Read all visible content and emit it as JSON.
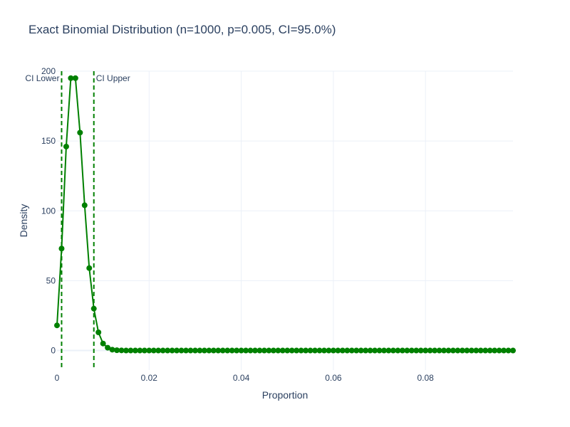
{
  "chart_data": {
    "type": "line",
    "title": "Exact Binomial Distribution (n=1000, p=0.005, CI=95.0%)",
    "xlabel": "Proportion",
    "ylabel": "Density",
    "xlim": [
      0,
      0.099
    ],
    "ylim": [
      -14,
      200
    ],
    "x_ticks": [
      0,
      0.02,
      0.04,
      0.06,
      0.08
    ],
    "x_tick_labels": [
      "0",
      "0.02",
      "0.04",
      "0.06",
      "0.08"
    ],
    "y_ticks": [
      0,
      50,
      100,
      150,
      200
    ],
    "y_tick_labels": [
      "0",
      "50",
      "100",
      "150",
      "200"
    ],
    "grid": true,
    "color": "#008000",
    "series": [
      {
        "x": [
          0,
          0.001,
          0.002,
          0.003,
          0.004,
          0.005,
          0.006,
          0.007,
          0.008,
          0.009,
          0.01,
          0.011,
          0.012,
          0.013,
          0.014,
          0.015,
          0.016,
          0.017,
          0.018,
          0.019,
          0.02,
          0.021,
          0.022,
          0.023,
          0.024,
          0.025,
          0.026,
          0.027,
          0.028,
          0.029,
          0.03,
          0.031,
          0.032,
          0.033,
          0.034,
          0.035,
          0.036,
          0.037,
          0.038,
          0.039,
          0.04,
          0.041,
          0.042,
          0.043,
          0.044,
          0.045,
          0.046,
          0.047,
          0.048,
          0.049,
          0.05,
          0.051,
          0.052,
          0.053,
          0.054,
          0.055,
          0.056,
          0.057,
          0.058,
          0.059,
          0.06,
          0.061,
          0.062,
          0.063,
          0.064,
          0.065,
          0.066,
          0.067,
          0.068,
          0.069,
          0.07,
          0.071,
          0.072,
          0.073,
          0.074,
          0.075,
          0.076,
          0.077,
          0.078,
          0.079,
          0.08,
          0.081,
          0.082,
          0.083,
          0.084,
          0.085,
          0.086,
          0.087,
          0.088,
          0.089,
          0.09,
          0.091,
          0.092,
          0.093,
          0.094,
          0.095,
          0.096,
          0.097,
          0.098,
          0.099
        ],
        "y": [
          18,
          73,
          146,
          195,
          195,
          156,
          104,
          59,
          30,
          13,
          5,
          2,
          0.6,
          0.2,
          0.1,
          0,
          0,
          0,
          0,
          0,
          0,
          0,
          0,
          0,
          0,
          0,
          0,
          0,
          0,
          0,
          0,
          0,
          0,
          0,
          0,
          0,
          0,
          0,
          0,
          0,
          0,
          0,
          0,
          0,
          0,
          0,
          0,
          0,
          0,
          0,
          0,
          0,
          0,
          0,
          0,
          0,
          0,
          0,
          0,
          0,
          0,
          0,
          0,
          0,
          0,
          0,
          0,
          0,
          0,
          0,
          0,
          0,
          0,
          0,
          0,
          0,
          0,
          0,
          0,
          0,
          0,
          0,
          0,
          0,
          0,
          0,
          0,
          0,
          0,
          0,
          0,
          0,
          0,
          0,
          0,
          0,
          0,
          0,
          0,
          0
        ]
      }
    ],
    "ci_lines": [
      {
        "label": "CI Lower",
        "x": 0.001
      },
      {
        "label": "CI Upper",
        "x": 0.008
      }
    ]
  }
}
